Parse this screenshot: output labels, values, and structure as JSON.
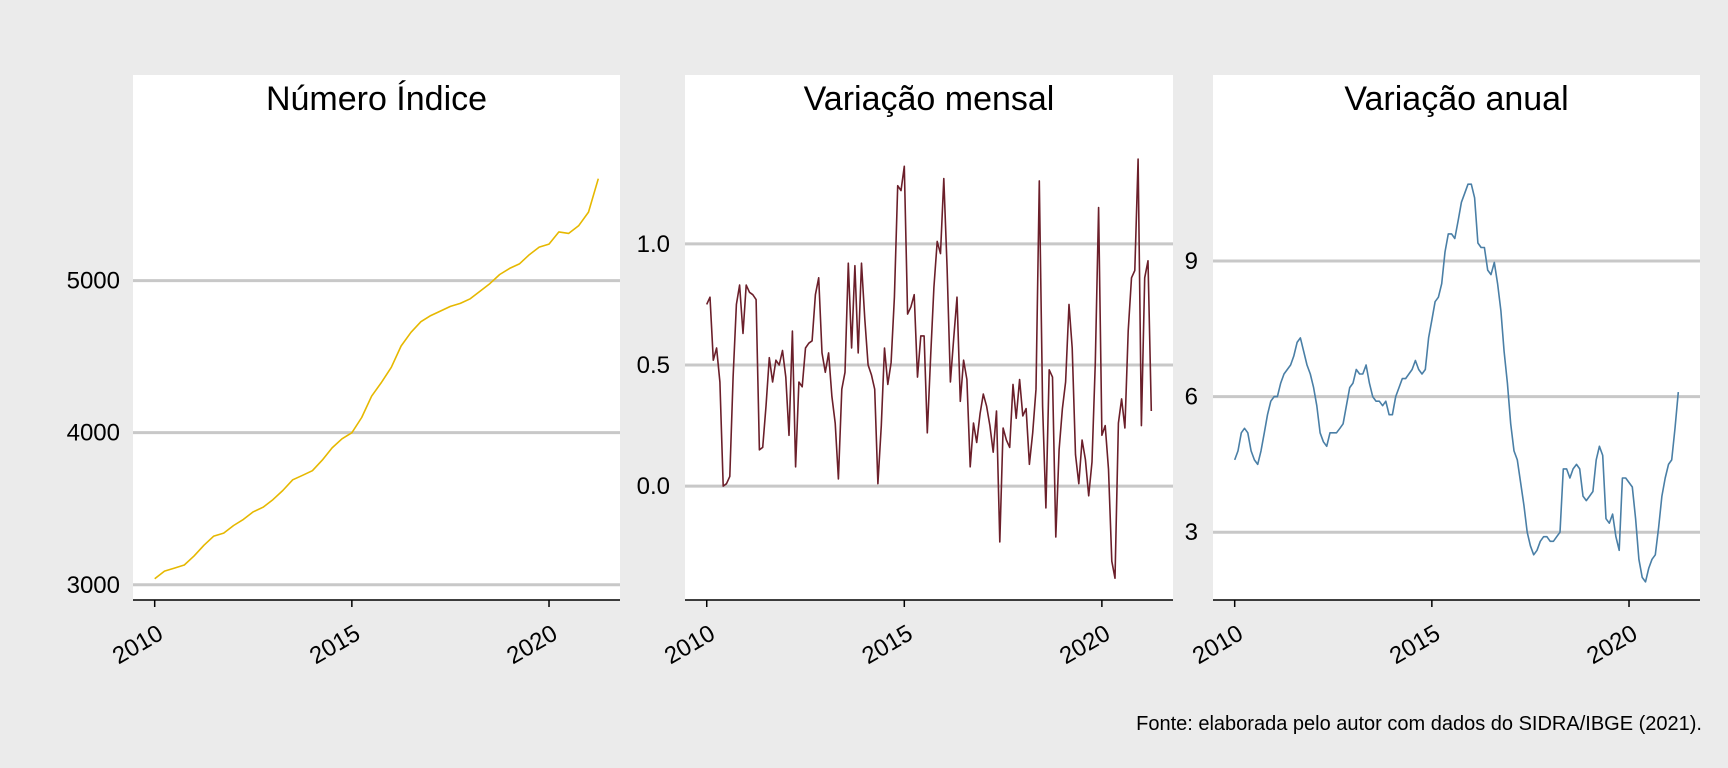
{
  "caption": "Fonte: elaborada pelo autor com dados do SIDRA/IBGE (2021).",
  "colors": {
    "background": "#ebebeb",
    "panel": "#ffffff",
    "grid": "#c8c8c8",
    "series": [
      "#e6b800",
      "#6b1f2a",
      "#4a7fa6"
    ]
  },
  "chart_data": [
    {
      "type": "line",
      "title": "Número Índice",
      "x_ticks": [
        2010,
        2015,
        2020
      ],
      "xlim": [
        2009.45,
        2021.8
      ],
      "y_ticks": [
        3000,
        4000,
        5000
      ],
      "y_tick_labels": [
        "3000",
        "4000",
        "5000"
      ],
      "ylim": [
        2900,
        5990
      ],
      "grid": "horizontal",
      "series": [
        {
          "color": "#e6b800",
          "x": [
            2010.0,
            2010.25,
            2010.5,
            2010.75,
            2011.0,
            2011.25,
            2011.5,
            2011.75,
            2012.0,
            2012.25,
            2012.5,
            2012.75,
            2013.0,
            2013.25,
            2013.5,
            2013.75,
            2014.0,
            2014.25,
            2014.5,
            2014.75,
            2015.0,
            2015.25,
            2015.5,
            2015.75,
            2016.0,
            2016.25,
            2016.5,
            2016.75,
            2017.0,
            2017.25,
            2017.5,
            2017.75,
            2018.0,
            2018.25,
            2018.5,
            2018.75,
            2019.0,
            2019.25,
            2019.5,
            2019.75,
            2020.0,
            2020.25,
            2020.5,
            2020.75,
            2021.0,
            2021.25
          ],
          "values": [
            3040,
            3090,
            3110,
            3130,
            3190,
            3260,
            3320,
            3340,
            3390,
            3430,
            3480,
            3510,
            3560,
            3620,
            3690,
            3720,
            3750,
            3820,
            3900,
            3960,
            4000,
            4100,
            4240,
            4330,
            4430,
            4570,
            4660,
            4730,
            4770,
            4800,
            4830,
            4850,
            4880,
            4930,
            4980,
            5040,
            5080,
            5110,
            5170,
            5220,
            5240,
            5320,
            5310,
            5360,
            5450,
            5670
          ]
        }
      ]
    },
    {
      "type": "line",
      "title": "Variação mensal",
      "x_ticks": [
        2010,
        2015,
        2020
      ],
      "xlim": [
        2009.45,
        2021.8
      ],
      "y_ticks": [
        0.0,
        0.5,
        1.0
      ],
      "y_tick_labels": [
        "0.0",
        "0.5",
        "1.0"
      ],
      "ylim": [
        -0.47,
        1.47
      ],
      "grid": "horizontal",
      "series": [
        {
          "color": "#6b1f2a",
          "x": [
            2010.0,
            2010.083,
            2010.167,
            2010.25,
            2010.333,
            2010.417,
            2010.5,
            2010.583,
            2010.667,
            2010.75,
            2010.833,
            2010.917,
            2011.0,
            2011.083,
            2011.167,
            2011.25,
            2011.333,
            2011.417,
            2011.5,
            2011.583,
            2011.667,
            2011.75,
            2011.833,
            2011.917,
            2012.0,
            2012.083,
            2012.167,
            2012.25,
            2012.333,
            2012.417,
            2012.5,
            2012.583,
            2012.667,
            2012.75,
            2012.833,
            2012.917,
            2013.0,
            2013.083,
            2013.167,
            2013.25,
            2013.333,
            2013.417,
            2013.5,
            2013.583,
            2013.667,
            2013.75,
            2013.833,
            2013.917,
            2014.0,
            2014.083,
            2014.167,
            2014.25,
            2014.333,
            2014.417,
            2014.5,
            2014.583,
            2014.667,
            2014.75,
            2014.833,
            2014.917,
            2015.0,
            2015.083,
            2015.167,
            2015.25,
            2015.333,
            2015.417,
            2015.5,
            2015.583,
            2015.667,
            2015.75,
            2015.833,
            2015.917,
            2016.0,
            2016.083,
            2016.167,
            2016.25,
            2016.333,
            2016.417,
            2016.5,
            2016.583,
            2016.667,
            2016.75,
            2016.833,
            2016.917,
            2017.0,
            2017.083,
            2017.167,
            2017.25,
            2017.333,
            2017.417,
            2017.5,
            2017.583,
            2017.667,
            2017.75,
            2017.833,
            2017.917,
            2018.0,
            2018.083,
            2018.167,
            2018.25,
            2018.333,
            2018.417,
            2018.5,
            2018.583,
            2018.667,
            2018.75,
            2018.833,
            2018.917,
            2019.0,
            2019.083,
            2019.167,
            2019.25,
            2019.333,
            2019.417,
            2019.5,
            2019.583,
            2019.667,
            2019.75,
            2019.833,
            2019.917,
            2020.0,
            2020.083,
            2020.167,
            2020.25,
            2020.333,
            2020.417,
            2020.5,
            2020.583,
            2020.667,
            2020.75,
            2020.833,
            2020.917,
            2021.0,
            2021.083,
            2021.167,
            2021.25
          ],
          "values": [
            0.75,
            0.78,
            0.52,
            0.57,
            0.43,
            0.0,
            0.01,
            0.04,
            0.45,
            0.75,
            0.83,
            0.63,
            0.83,
            0.8,
            0.79,
            0.77,
            0.15,
            0.16,
            0.33,
            0.53,
            0.43,
            0.52,
            0.5,
            0.56,
            0.45,
            0.21,
            0.64,
            0.08,
            0.43,
            0.41,
            0.57,
            0.59,
            0.6,
            0.79,
            0.86,
            0.55,
            0.47,
            0.55,
            0.37,
            0.26,
            0.03,
            0.4,
            0.47,
            0.92,
            0.57,
            0.91,
            0.55,
            0.92,
            0.69,
            0.5,
            0.46,
            0.4,
            0.01,
            0.25,
            0.57,
            0.42,
            0.51,
            0.78,
            1.24,
            1.22,
            1.32,
            0.71,
            0.74,
            0.79,
            0.45,
            0.62,
            0.62,
            0.22,
            0.54,
            0.82,
            1.01,
            0.96,
            1.27,
            0.9,
            0.43,
            0.61,
            0.78,
            0.35,
            0.52,
            0.44,
            0.08,
            0.26,
            0.18,
            0.3,
            0.38,
            0.33,
            0.25,
            0.14,
            0.31,
            -0.23,
            0.24,
            0.19,
            0.16,
            0.42,
            0.28,
            0.44,
            0.29,
            0.32,
            0.09,
            0.22,
            0.4,
            1.26,
            0.33,
            -0.09,
            0.48,
            0.45,
            -0.21,
            0.15,
            0.32,
            0.43,
            0.75,
            0.57,
            0.13,
            0.01,
            0.19,
            0.11,
            -0.04,
            0.1,
            0.51,
            1.15,
            0.21,
            0.25,
            0.07,
            -0.31,
            -0.38,
            0.26,
            0.36,
            0.24,
            0.64,
            0.86,
            0.89,
            1.35,
            0.25,
            0.86,
            0.93,
            0.31
          ]
        }
      ]
    },
    {
      "type": "line",
      "title": "Variação anual",
      "x_ticks": [
        2010,
        2015,
        2020
      ],
      "xlim": [
        2009.45,
        2021.8
      ],
      "y_ticks": [
        3,
        6,
        9
      ],
      "y_tick_labels": [
        "3",
        "6",
        "9"
      ],
      "ylim": [
        1.5,
        11.9
      ],
      "grid": "horizontal",
      "series": [
        {
          "color": "#4a7fa6",
          "x": [
            2010.0,
            2010.083,
            2010.167,
            2010.25,
            2010.333,
            2010.417,
            2010.5,
            2010.583,
            2010.667,
            2010.75,
            2010.833,
            2010.917,
            2011.0,
            2011.083,
            2011.167,
            2011.25,
            2011.333,
            2011.417,
            2011.5,
            2011.583,
            2011.667,
            2011.75,
            2011.833,
            2011.917,
            2012.0,
            2012.083,
            2012.167,
            2012.25,
            2012.333,
            2012.417,
            2012.5,
            2012.583,
            2012.667,
            2012.75,
            2012.833,
            2012.917,
            2013.0,
            2013.083,
            2013.167,
            2013.25,
            2013.333,
            2013.417,
            2013.5,
            2013.583,
            2013.667,
            2013.75,
            2013.833,
            2013.917,
            2014.0,
            2014.083,
            2014.167,
            2014.25,
            2014.333,
            2014.417,
            2014.5,
            2014.583,
            2014.667,
            2014.75,
            2014.833,
            2014.917,
            2015.0,
            2015.083,
            2015.167,
            2015.25,
            2015.333,
            2015.417,
            2015.5,
            2015.583,
            2015.667,
            2015.75,
            2015.833,
            2015.917,
            2016.0,
            2016.083,
            2016.167,
            2016.25,
            2016.333,
            2016.417,
            2016.5,
            2016.583,
            2016.667,
            2016.75,
            2016.833,
            2016.917,
            2017.0,
            2017.083,
            2017.167,
            2017.25,
            2017.333,
            2017.417,
            2017.5,
            2017.583,
            2017.667,
            2017.75,
            2017.833,
            2017.917,
            2018.0,
            2018.083,
            2018.167,
            2018.25,
            2018.333,
            2018.417,
            2018.5,
            2018.583,
            2018.667,
            2018.75,
            2018.833,
            2018.917,
            2019.0,
            2019.083,
            2019.167,
            2019.25,
            2019.333,
            2019.417,
            2019.5,
            2019.583,
            2019.667,
            2019.75,
            2019.833,
            2019.917,
            2020.0,
            2020.083,
            2020.167,
            2020.25,
            2020.333,
            2020.417,
            2020.5,
            2020.583,
            2020.667,
            2020.75,
            2020.833,
            2020.917,
            2021.0,
            2021.083,
            2021.167,
            2021.25
          ],
          "values": [
            4.6,
            4.8,
            5.2,
            5.3,
            5.2,
            4.8,
            4.6,
            4.5,
            4.8,
            5.2,
            5.6,
            5.9,
            6.0,
            6.0,
            6.3,
            6.5,
            6.6,
            6.7,
            6.9,
            7.2,
            7.3,
            7.0,
            6.7,
            6.5,
            6.2,
            5.8,
            5.2,
            5.0,
            4.9,
            5.2,
            5.2,
            5.2,
            5.3,
            5.4,
            5.8,
            6.2,
            6.3,
            6.6,
            6.5,
            6.5,
            6.7,
            6.3,
            6.0,
            5.9,
            5.9,
            5.8,
            5.9,
            5.6,
            5.6,
            6.0,
            6.2,
            6.4,
            6.4,
            6.5,
            6.6,
            6.8,
            6.6,
            6.5,
            6.6,
            7.3,
            7.7,
            8.1,
            8.2,
            8.5,
            9.2,
            9.6,
            9.6,
            9.5,
            9.9,
            10.3,
            10.5,
            10.7,
            10.7,
            10.4,
            9.4,
            9.3,
            9.3,
            8.8,
            8.7,
            8.97,
            8.5,
            7.9,
            7.0,
            6.3,
            5.4,
            4.8,
            4.6,
            4.1,
            3.6,
            3.0,
            2.7,
            2.5,
            2.6,
            2.8,
            2.9,
            2.9,
            2.8,
            2.8,
            2.9,
            3.0,
            4.4,
            4.4,
            4.2,
            4.4,
            4.5,
            4.4,
            3.8,
            3.7,
            3.8,
            3.9,
            4.6,
            4.9,
            4.7,
            3.3,
            3.2,
            3.4,
            2.9,
            2.6,
            4.2,
            4.2,
            4.1,
            4.0,
            3.3,
            2.4,
            2.0,
            1.9,
            2.2,
            2.4,
            2.5,
            3.1,
            3.8,
            4.2,
            4.5,
            4.6,
            5.3,
            6.1
          ]
        }
      ]
    }
  ]
}
